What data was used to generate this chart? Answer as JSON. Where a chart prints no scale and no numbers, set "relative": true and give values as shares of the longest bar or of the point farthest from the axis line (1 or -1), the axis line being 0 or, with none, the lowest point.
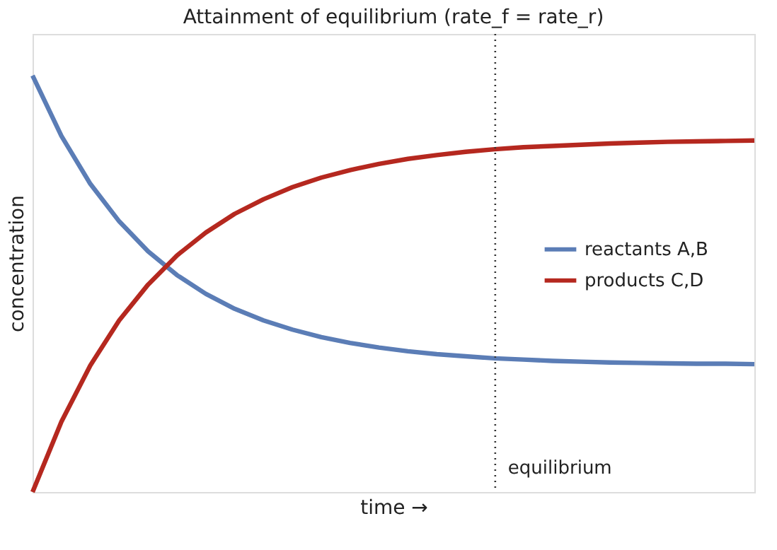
{
  "chart_data": {
    "type": "line",
    "title": "Attainment of equilibrium (rate_f = rate_r)",
    "xlabel": "time  →",
    "ylabel": "concentration",
    "categories": [
      null,
      null,
      null,
      null,
      null,
      null,
      null,
      null,
      null,
      null,
      null,
      null,
      null,
      null,
      null,
      null,
      null,
      null,
      null,
      null,
      null,
      null,
      null,
      null,
      null,
      null
    ],
    "relative": true,
    "series": [
      {
        "name": "reactants A,B",
        "color": "#5b7db6",
        "values": [
          1.0,
          0.855,
          0.74,
          0.65,
          0.578,
          0.521,
          0.476,
          0.44,
          0.412,
          0.39,
          0.372,
          0.358,
          0.347,
          0.338,
          0.331,
          0.326,
          0.321,
          0.318,
          0.315,
          0.313,
          0.311,
          0.31,
          0.309,
          0.308,
          0.308,
          0.307
        ]
      },
      {
        "name": "products C,D",
        "color": "#b5281f",
        "values": [
          0,
          0.169,
          0.304,
          0.412,
          0.498,
          0.568,
          0.623,
          0.668,
          0.703,
          0.732,
          0.755,
          0.773,
          0.788,
          0.8,
          0.809,
          0.817,
          0.823,
          0.828,
          0.831,
          0.834,
          0.837,
          0.839,
          0.841,
          0.842,
          0.843,
          0.844
        ]
      }
    ],
    "annotations": [
      "equilibrium"
    ],
    "legend": "right",
    "grid": false,
    "tick_labels": false,
    "marker": "none",
    "line_style": "solid"
  }
}
